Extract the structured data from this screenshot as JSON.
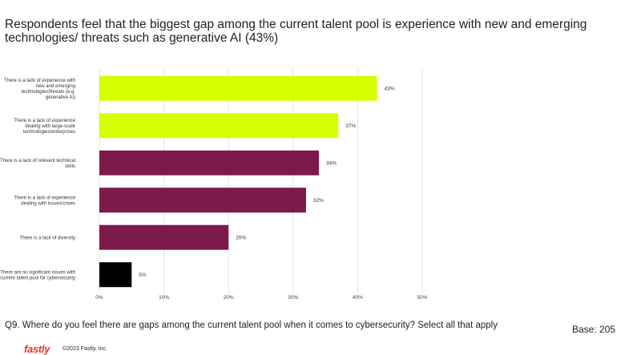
{
  "title": "Respondents feel that the biggest gap among the current talent pool is experience with new and emerging technologies/ threats such as generative AI (43%)",
  "question": "Q9.  Where do you feel there are gaps among the current talent pool when it comes to cybersecurity? Select all that apply",
  "base": "Base: 205",
  "footer": {
    "logo": "fastly",
    "copyright": "©2023 Fastly, Inc."
  },
  "colors": {
    "highlight": "#d7ff00",
    "primary": "#7c1a4b",
    "neutral": "#000000",
    "grid": "#e3e3e3"
  },
  "chart_data": {
    "type": "bar",
    "orientation": "horizontal",
    "title": "Respondents feel that the biggest gap among the current talent pool is experience with new and emerging technologies/ threats such as generative AI (43%)",
    "categories": [
      [
        "There is a lack of experience with",
        "new and emerging",
        "technologies/threats (e.g.",
        "generative AI)"
      ],
      [
        "There is a lack of experience",
        "dealing with large-scale",
        "technologies/enterprises"
      ],
      [
        "There is a lack of relevant technical",
        "skills"
      ],
      [
        "There is a lack of experience",
        "dealing with issues/crises"
      ],
      [
        "There is a lack of diversity"
      ],
      [
        "There are no significant issues with",
        "current talent pool for cybersecurity"
      ]
    ],
    "values": [
      43,
      37,
      34,
      32,
      20,
      5
    ],
    "value_labels": [
      "43%",
      "37%",
      "34%",
      "32%",
      "20%",
      "5%"
    ],
    "bar_colors": [
      "#d7ff00",
      "#d7ff00",
      "#7c1a4b",
      "#7c1a4b",
      "#7c1a4b",
      "#000000"
    ],
    "xlim": [
      0,
      50
    ],
    "xticks": [
      0,
      10,
      20,
      30,
      40,
      50
    ],
    "xtick_labels": [
      "0%",
      "10%",
      "20%",
      "30%",
      "40%",
      "50%"
    ],
    "grid": true
  }
}
